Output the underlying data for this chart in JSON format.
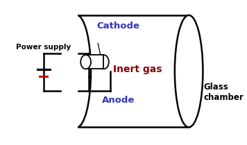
{
  "bg_color": "#ffffff",
  "label_cathode": "Cathode",
  "label_anode": "Anode",
  "label_inert_gas": "Inert gas",
  "label_glass_chamber": "Glass\nchamber",
  "label_power_supply": "Power supply",
  "color_blue": "#3333bb",
  "color_darkred": "#8b0000",
  "color_black": "#000000",
  "color_red": "#cc0000",
  "lw_main": 1.8,
  "lw_thin": 1.2,
  "figw": 3.56,
  "figh": 2.09,
  "dpi": 100
}
